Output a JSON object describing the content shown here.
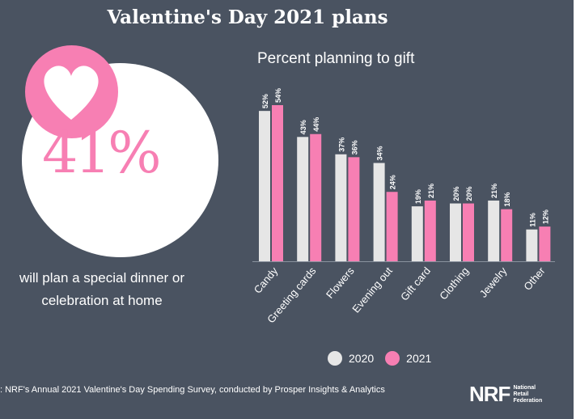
{
  "title": "Valentine's Day 2021 plans",
  "stat": {
    "value": "41%",
    "text_line1": "will plan a special dinner or",
    "text_line2": "celebration at home"
  },
  "source": ": NRF's Annual 2021 Valentine's Day Spending Survey, conducted by Prosper Insights & Analytics",
  "logo": {
    "mark": "NRF",
    "line1": "National",
    "line2": "Retail",
    "line3": "Federation"
  },
  "colors": {
    "bg": "#4a5361",
    "s2020": "#e6e6e6",
    "s2021": "#f77fb3"
  },
  "chart_data": {
    "type": "bar",
    "title": "Percent planning to gift",
    "categories": [
      "Candy",
      "Greeting cards",
      "Flowers",
      "Evening out",
      "Gift card",
      "Clothing",
      "Jewelry",
      "Other"
    ],
    "series": [
      {
        "name": "2020",
        "values": [
          52,
          43,
          37,
          34,
          19,
          20,
          21,
          11
        ],
        "labels": [
          "52%",
          "43%",
          "37%",
          "34%",
          "19%",
          "20%",
          "21%",
          "11%"
        ]
      },
      {
        "name": "2021",
        "values": [
          54,
          44,
          36,
          24,
          21,
          20,
          18,
          12
        ],
        "labels": [
          "54%",
          "44%",
          "36%",
          "24%",
          "21%",
          "20%",
          "18%",
          "12%"
        ]
      }
    ],
    "ylim": [
      0,
      54
    ],
    "legend": "bottom"
  }
}
